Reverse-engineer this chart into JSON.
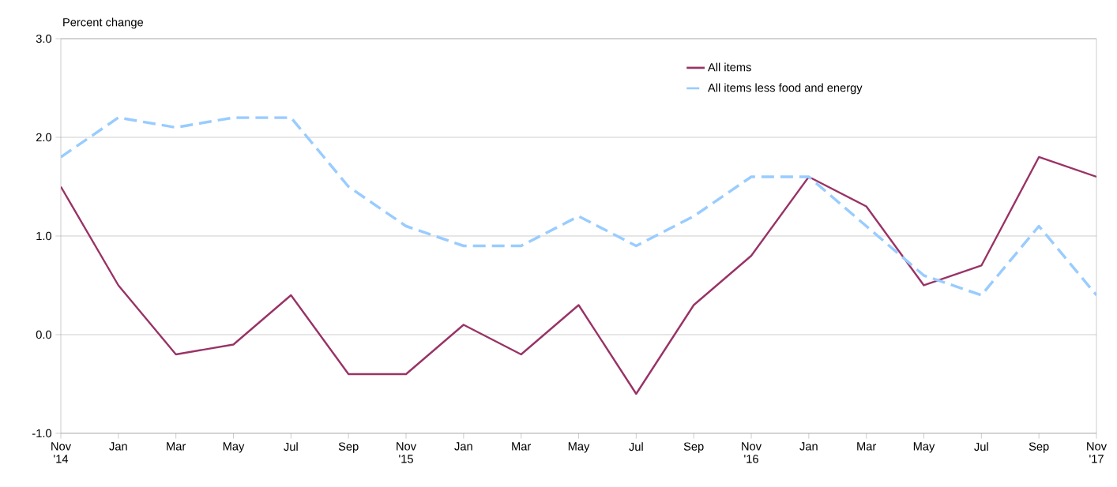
{
  "chart_data": {
    "type": "line",
    "ylabel": "Percent change",
    "categories": [
      "Nov '14",
      "Jan",
      "Mar",
      "May",
      "Jul",
      "Sep",
      "Nov '15",
      "Jan",
      "Mar",
      "May",
      "Jul",
      "Sep",
      "Nov '16",
      "Jan",
      "Mar",
      "May",
      "Jul",
      "Sep",
      "Nov '17"
    ],
    "series": [
      {
        "name": "All items",
        "color": "#993366",
        "line_style": "solid",
        "values": [
          1.5,
          0.5,
          -0.2,
          -0.1,
          0.4,
          -0.4,
          -0.4,
          0.1,
          -0.2,
          0.3,
          -0.6,
          0.3,
          0.8,
          1.6,
          1.3,
          0.5,
          0.7,
          1.8,
          1.6
        ]
      },
      {
        "name": "All items less food and energy",
        "color": "#99ccff",
        "line_style": "dashed",
        "values": [
          1.8,
          2.2,
          2.1,
          2.2,
          2.2,
          1.5,
          1.1,
          0.9,
          0.9,
          1.2,
          0.9,
          1.2,
          1.6,
          1.6,
          1.1,
          0.6,
          0.4,
          1.1,
          0.4
        ]
      }
    ],
    "ylim": [
      -1,
      3
    ],
    "yticks": [
      {
        "value": -1,
        "label": "-1.0"
      },
      {
        "value": 0,
        "label": "0.0"
      },
      {
        "value": 1,
        "label": "1.0"
      },
      {
        "value": 2,
        "label": "2.0"
      },
      {
        "value": 3,
        "label": "3.0"
      }
    ],
    "grid": "y",
    "legend": "top right",
    "marker": "none"
  }
}
